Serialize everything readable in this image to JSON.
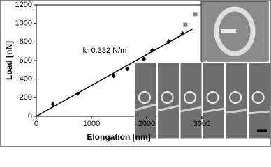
{
  "chart_data": {
    "type": "scatter",
    "x_label": "Elongation [nm]",
    "y_label": "Load [nN]",
    "annotation": "k=0.332 N/m",
    "xlim": [
      0,
      3000
    ],
    "xticks": [
      0,
      1000,
      2000,
      3000
    ],
    "ylim": [
      0,
      1200
    ],
    "yticks": [
      0,
      200,
      400,
      600,
      800,
      1000,
      1200
    ],
    "series": [
      {
        "marker": "diamond",
        "color": "#000000",
        "x": [
          300,
          750,
          1400,
          1650,
          1950,
          2100,
          2400,
          2650
        ],
        "values": [
          130,
          245,
          435,
          510,
          615,
          710,
          805,
          890
        ]
      },
      {
        "marker": "square",
        "color": "#808080",
        "x": [
          2700,
          2880
        ],
        "values": [
          985,
          1100
        ]
      },
      {
        "marker": "line",
        "color": "#000000",
        "x": [
          0,
          2850
        ],
        "values": [
          0,
          946
        ]
      }
    ]
  }
}
